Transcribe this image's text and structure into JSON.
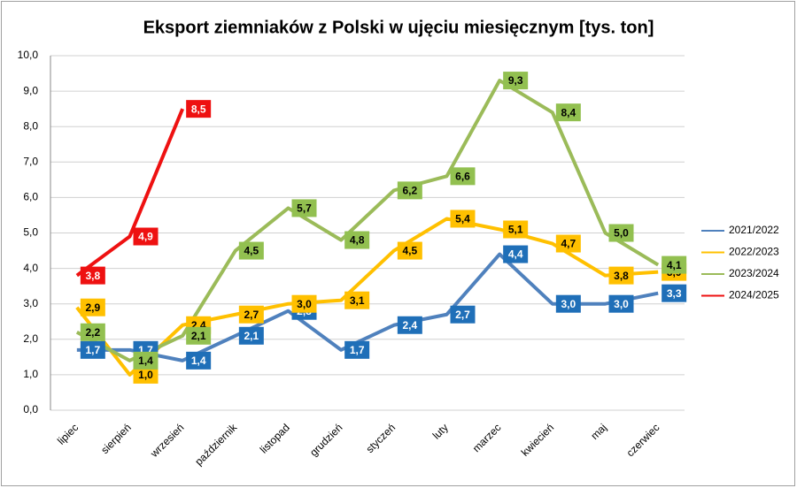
{
  "chart_data": {
    "type": "line",
    "title": "Eksport ziemniaków z Polski w ujęciu miesięcznym [tys. ton]",
    "categories": [
      "lipiec",
      "sierpień",
      "wrzesień",
      "październik",
      "listopad",
      "grudzień",
      "styczeń",
      "luty",
      "marzec",
      "kwiecień",
      "maj",
      "czerwiec"
    ],
    "series": [
      {
        "name": "2021/2022",
        "color": "#4f81bd",
        "label_fill": "#1f6fb8",
        "label_text": "#ffffff",
        "values": [
          1.7,
          1.7,
          1.4,
          2.1,
          2.8,
          1.7,
          2.4,
          2.7,
          4.4,
          3.0,
          3.0,
          3.3
        ],
        "value_labels": [
          "1,7",
          "1,7",
          "1,4",
          "2,1",
          "2,8",
          "1,7",
          "2,4",
          "2,7",
          "4,4",
          "3,0",
          "3,0",
          "3,3"
        ]
      },
      {
        "name": "2022/2023",
        "color": "#ffc000",
        "label_fill": "#ffc000",
        "label_text": "#000000",
        "values": [
          2.9,
          1.0,
          2.4,
          2.7,
          3.0,
          3.1,
          4.5,
          5.4,
          5.1,
          4.7,
          3.8,
          3.9
        ],
        "value_labels": [
          "2,9",
          "1,0",
          "2,4",
          "2,7",
          "3,0",
          "3,1",
          "4,5",
          "5,4",
          "5,1",
          "4,7",
          "3,8",
          "3,9"
        ]
      },
      {
        "name": "2023/2024",
        "color": "#9bbb59",
        "label_fill": "#92c050",
        "label_text": "#000000",
        "values": [
          2.2,
          1.4,
          2.1,
          4.5,
          5.7,
          4.8,
          6.2,
          6.6,
          9.3,
          8.4,
          5.0,
          4.1
        ],
        "value_labels": [
          "2,2",
          "1,4",
          "2,1",
          "4,5",
          "5,7",
          "4,8",
          "6,2",
          "6,6",
          "9,3",
          "8,4",
          "5,0",
          "4,1"
        ]
      },
      {
        "name": "2024/2025",
        "color": "#ee1111",
        "label_fill": "#ee1111",
        "label_text": "#ffffff",
        "values": [
          3.8,
          4.9,
          8.5,
          null,
          null,
          null,
          null,
          null,
          null,
          null,
          null,
          null
        ],
        "value_labels": [
          "3,8",
          "4,9",
          "8,5",
          null,
          null,
          null,
          null,
          null,
          null,
          null,
          null,
          null
        ]
      }
    ],
    "ylim": [
      0,
      10
    ],
    "yticks": [
      {
        "value": 0,
        "label": "0,0"
      },
      {
        "value": 1,
        "label": "1,0"
      },
      {
        "value": 2,
        "label": "2,0"
      },
      {
        "value": 3,
        "label": "3,0"
      },
      {
        "value": 4,
        "label": "4,0"
      },
      {
        "value": 5,
        "label": "5,0"
      },
      {
        "value": 6,
        "label": "6,0"
      },
      {
        "value": 7,
        "label": "7,0"
      },
      {
        "value": 8,
        "label": "8,0"
      },
      {
        "value": 9,
        "label": "9,0"
      },
      {
        "value": 10,
        "label": "10,0"
      }
    ],
    "grid": true,
    "legend": "right"
  }
}
